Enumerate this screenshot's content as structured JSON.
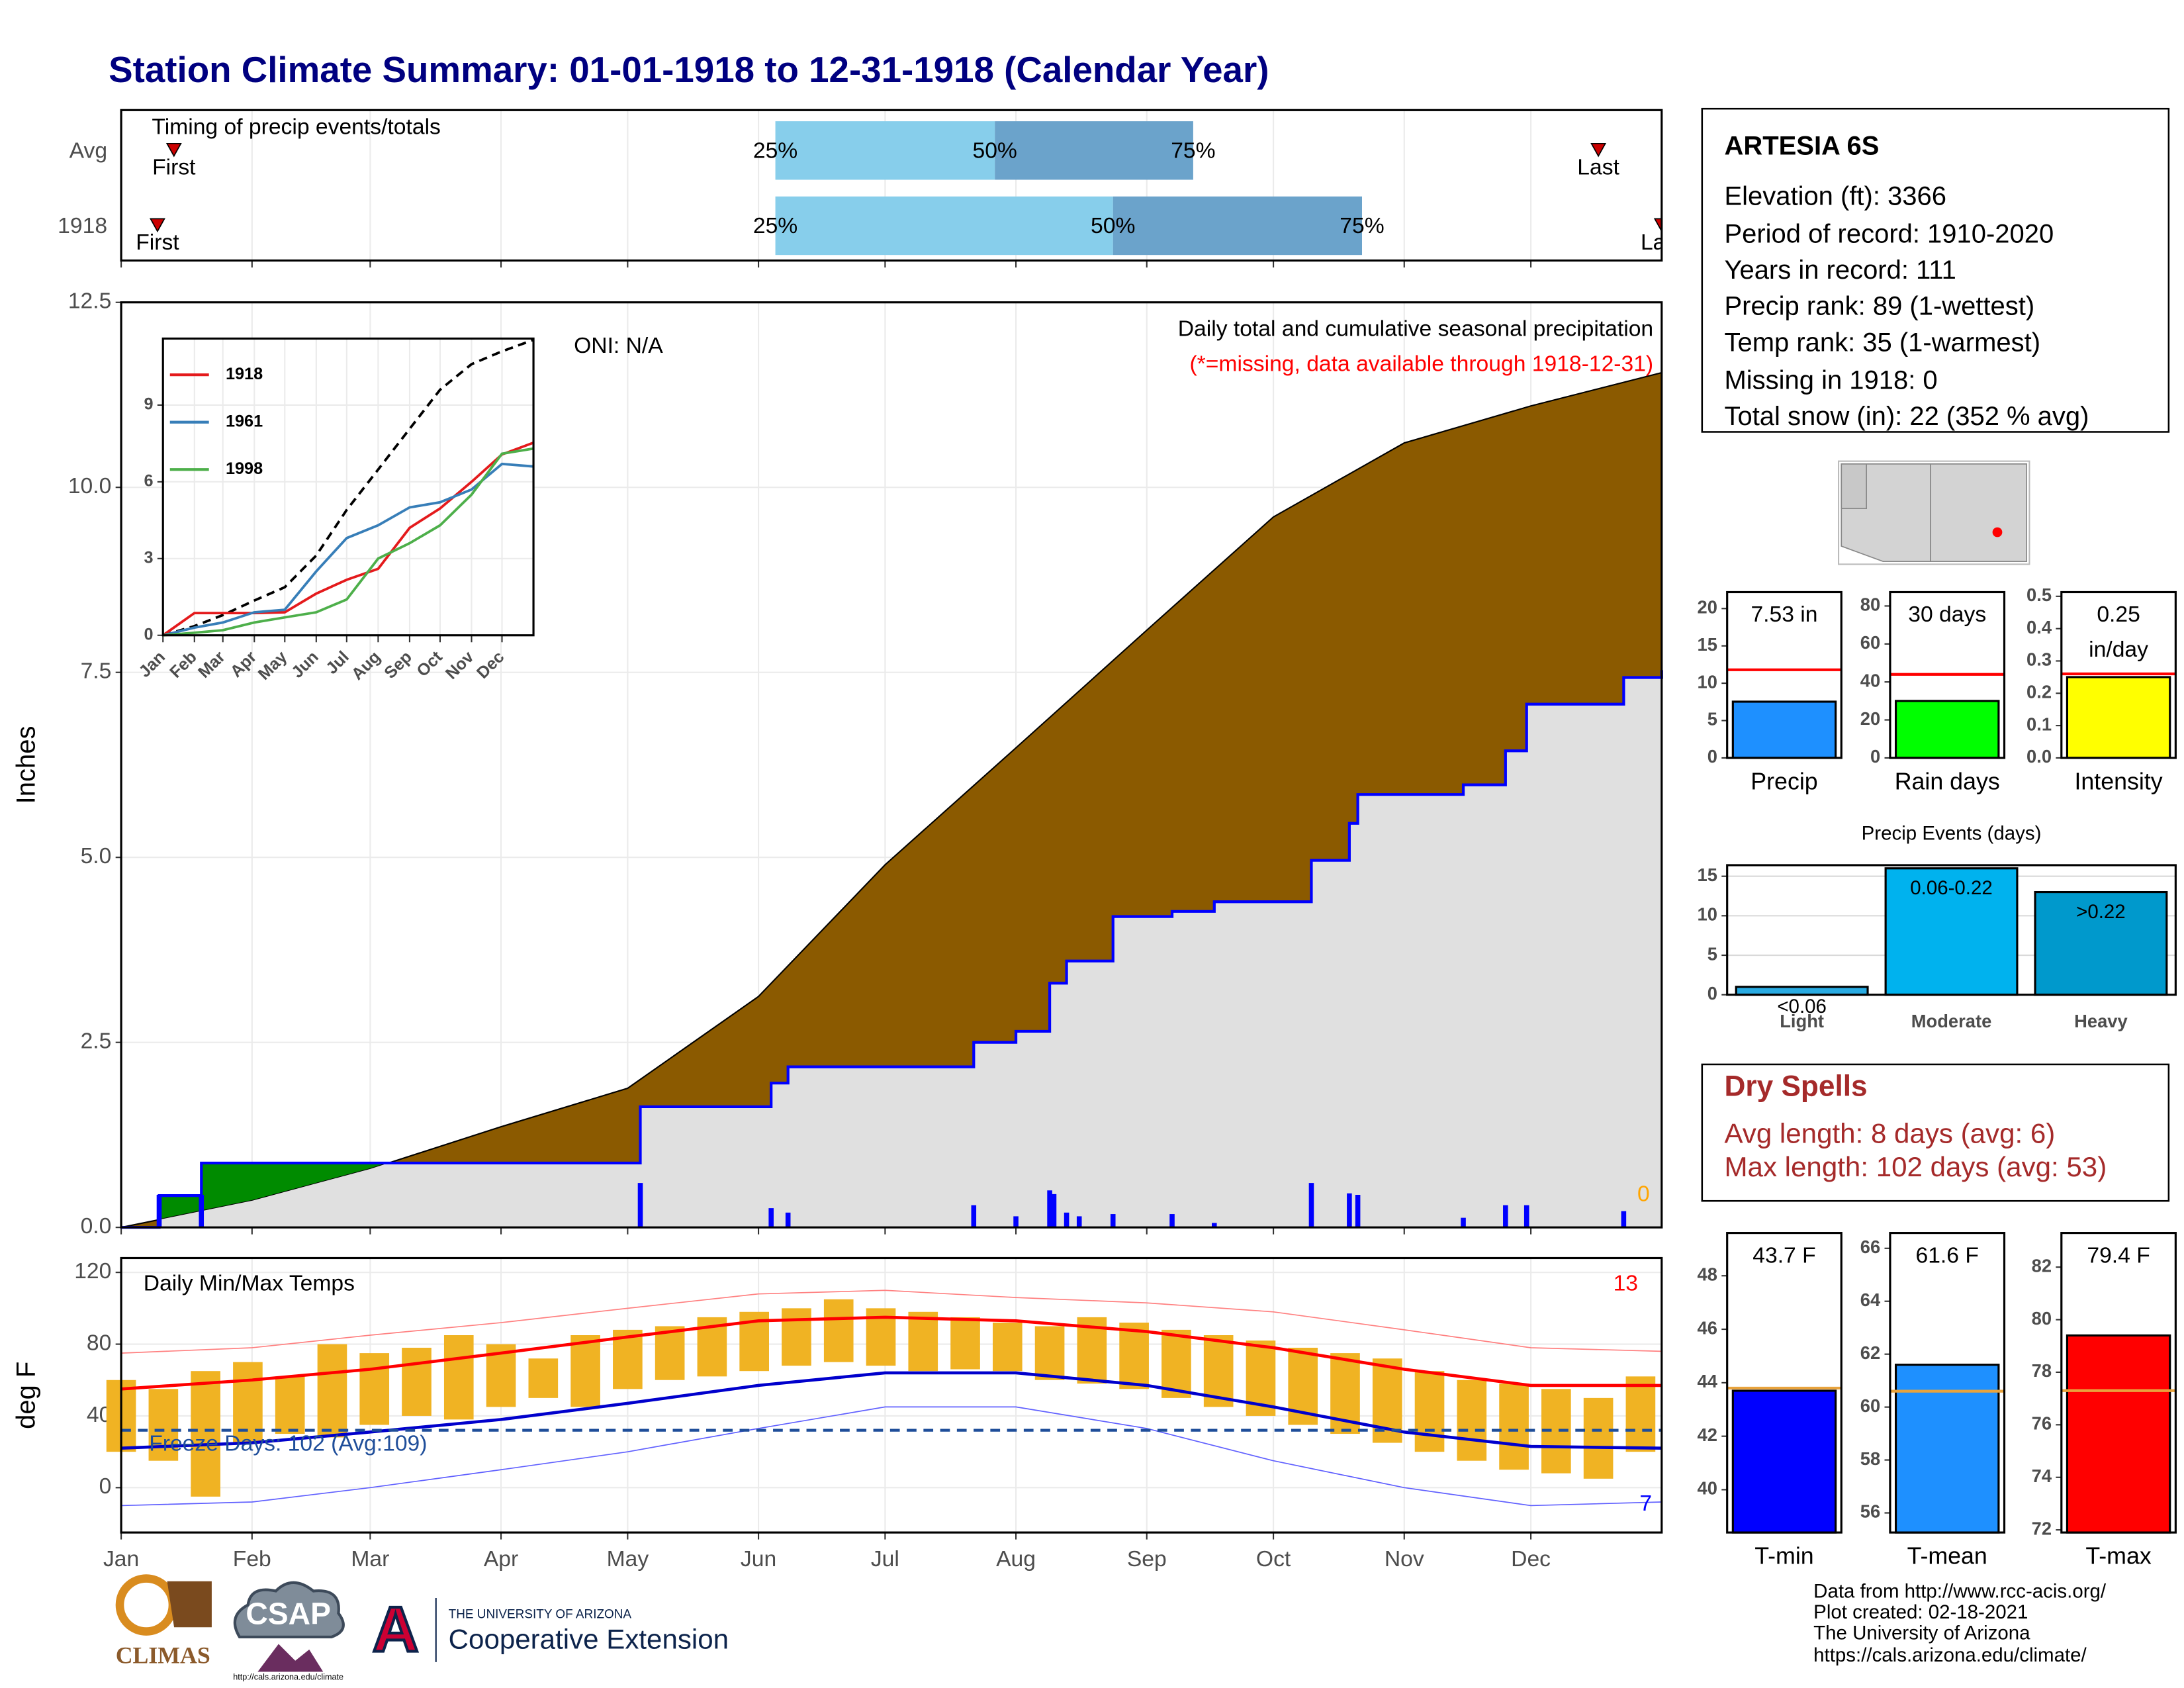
{
  "title": "Station Climate Summary: 01-01-1918 to 12-31-1918 (Calendar Year)",
  "chart_data": [
    {
      "type": "timing",
      "title": "Timing of precip events/totals",
      "categories": [
        "Avg",
        "1918"
      ],
      "first": [
        12.5,
        8.6
      ],
      "last": [
        350,
        365
      ],
      "quartiles": [
        [
          155,
          207,
          254
        ],
        [
          155,
          235,
          294
        ]
      ],
      "marker_labels": [
        "First",
        "Last"
      ],
      "quartile_labels": [
        "25%",
        "50%",
        "75%"
      ],
      "colors": [
        "#87ceeb",
        "#6ba3cb"
      ],
      "marker_color": "#cc0000",
      "xlim": [
        0,
        365
      ],
      "xticks": [
        0,
        31,
        59,
        90,
        120,
        151,
        181,
        212,
        243,
        273,
        304,
        334
      ],
      "grid": true
    },
    {
      "type": "area",
      "ylabel": "Inches",
      "xlim": [
        0,
        365
      ],
      "ylim": [
        0,
        12.5
      ],
      "yticks": [
        {
          "value": 0,
          "label": "0.0"
        },
        2.5,
        {
          "value": 5,
          "label": "5.0"
        },
        7.5,
        {
          "value": 10,
          "label": "10.0"
        },
        12.5
      ],
      "xticks": [
        0,
        31,
        59,
        90,
        120,
        151,
        181,
        212,
        243,
        273,
        304,
        334
      ],
      "grid": true,
      "average": {
        "color": "#8b5a00",
        "x": [
          0,
          31,
          59,
          90,
          120,
          151,
          181,
          212,
          243,
          273,
          304,
          334,
          365
        ],
        "values": [
          0,
          0.36,
          0.79,
          1.36,
          1.88,
          3.12,
          4.9,
          6.48,
          8.07,
          9.6,
          10.6,
          11.1,
          11.55
        ]
      },
      "year": {
        "color": "#0000ff",
        "above_color": "#008b00",
        "below_color": "#e0e0e0",
        "x": [
          0,
          9,
          19,
          123,
          154,
          158,
          202,
          212,
          220,
          224,
          235,
          249,
          259,
          282,
          291,
          293,
          318,
          328,
          333,
          356,
          365
        ],
        "values": [
          0,
          0.43,
          0.87,
          1.63,
          1.95,
          2.17,
          2.5,
          2.65,
          3.3,
          3.6,
          4.2,
          4.27,
          4.4,
          4.96,
          5.46,
          5.85,
          5.98,
          6.44,
          7.07,
          7.43,
          7.53
        ]
      },
      "daily": {
        "color": "#0000ff",
        "x": [
          9,
          19,
          123,
          154,
          158,
          202,
          212,
          220,
          221,
          224,
          227,
          235,
          249,
          259,
          282,
          291,
          293,
          318,
          328,
          333,
          356
        ],
        "values": [
          0.44,
          0.44,
          0.6,
          0.26,
          0.2,
          0.3,
          0.15,
          0.5,
          0.45,
          0.2,
          0.15,
          0.18,
          0.18,
          0.06,
          0.6,
          0.46,
          0.44,
          0.13,
          0.3,
          0.3,
          0.22
        ]
      },
      "annotations": [
        "ONI: N/A",
        "Daily total and cumulative seasonal precipitation",
        "(*=missing, data available through 1918-12-31)",
        "0"
      ]
    },
    {
      "type": "line",
      "xlim": [
        0,
        365
      ],
      "ylim": [
        0,
        11.6
      ],
      "yticks": [
        0,
        3,
        6,
        9
      ],
      "grid": true,
      "xticks": [
        {
          "value": 0,
          "label": "Jan"
        },
        {
          "value": 31,
          "label": "Feb"
        },
        {
          "value": 59,
          "label": "Mar"
        },
        {
          "value": 90,
          "label": "Apr"
        },
        {
          "value": 120,
          "label": "May"
        },
        {
          "value": 151,
          "label": "Jun"
        },
        {
          "value": 181,
          "label": "Jul"
        },
        {
          "value": 212,
          "label": "Aug"
        },
        {
          "value": 243,
          "label": "Sep"
        },
        {
          "value": 273,
          "label": "Oct"
        },
        {
          "value": 304,
          "label": "Nov"
        },
        {
          "value": 334,
          "label": "Dec"
        }
      ],
      "series": [
        {
          "color": "#000000",
          "dash": true,
          "x": [
            0,
            31,
            59,
            90,
            120,
            151,
            181,
            212,
            243,
            273,
            304,
            334,
            365
          ],
          "values": [
            0,
            0.36,
            0.79,
            1.36,
            1.88,
            3.12,
            4.9,
            6.48,
            8.07,
            9.6,
            10.6,
            11.1,
            11.55
          ]
        },
        {
          "name": "1918",
          "color": "#e41a1c",
          "x": [
            0,
            31,
            59,
            90,
            120,
            151,
            181,
            212,
            243,
            273,
            304,
            334,
            365
          ],
          "values": [
            0,
            0.87,
            0.87,
            0.87,
            0.9,
            1.63,
            2.17,
            2.6,
            4.2,
            4.96,
            6.0,
            7.07,
            7.53
          ]
        },
        {
          "name": "1961",
          "color": "#377eb8",
          "x": [
            0,
            31,
            59,
            90,
            120,
            151,
            181,
            212,
            243,
            273,
            304,
            334,
            365
          ],
          "values": [
            0,
            0.3,
            0.5,
            0.9,
            1.0,
            2.5,
            3.8,
            4.3,
            5.0,
            5.2,
            5.7,
            6.7,
            6.6
          ]
        },
        {
          "name": "1998",
          "color": "#4daf4a",
          "x": [
            0,
            31,
            59,
            90,
            120,
            151,
            181,
            212,
            243,
            273,
            304,
            334,
            365
          ],
          "values": [
            0,
            0.1,
            0.2,
            0.5,
            0.7,
            0.9,
            1.4,
            3.0,
            3.6,
            4.3,
            5.5,
            7.1,
            7.3
          ]
        }
      ]
    },
    {
      "type": "temperature",
      "title": "Daily Min/Max Temps",
      "ylabel": "deg F",
      "xlim": [
        0,
        365
      ],
      "ylim": [
        -25,
        128
      ],
      "yticks": [
        0,
        40,
        80,
        120
      ],
      "grid": true,
      "xticks": [
        {
          "value": 0,
          "label": "Jan"
        },
        {
          "value": 31,
          "label": "Feb"
        },
        {
          "value": 59,
          "label": "Mar"
        },
        {
          "value": 90,
          "label": "Apr"
        },
        {
          "value": 120,
          "label": "May"
        },
        {
          "value": 151,
          "label": "Jun"
        },
        {
          "value": 181,
          "label": "Jul"
        },
        {
          "value": 212,
          "label": "Aug"
        },
        {
          "value": 243,
          "label": "Sep"
        },
        {
          "value": 273,
          "label": "Oct"
        },
        {
          "value": 304,
          "label": "Nov"
        },
        {
          "value": 334,
          "label": "Dec"
        }
      ],
      "daily": {
        "color": "#f0b323",
        "x": [
          0,
          10,
          20,
          30,
          40,
          50,
          60,
          70,
          80,
          90,
          100,
          110,
          120,
          130,
          140,
          150,
          160,
          170,
          180,
          190,
          200,
          210,
          220,
          230,
          240,
          250,
          260,
          270,
          280,
          290,
          300,
          310,
          320,
          330,
          340,
          350,
          360
        ],
        "max": [
          60,
          55,
          65,
          70,
          62,
          80,
          75,
          78,
          85,
          80,
          72,
          85,
          88,
          90,
          95,
          98,
          100,
          105,
          100,
          98,
          95,
          92,
          90,
          95,
          92,
          88,
          85,
          82,
          78,
          75,
          72,
          65,
          60,
          58,
          55,
          50,
          62
        ],
        "min": [
          20,
          15,
          -5,
          25,
          30,
          28,
          35,
          40,
          38,
          45,
          50,
          45,
          55,
          60,
          62,
          65,
          68,
          70,
          68,
          65,
          66,
          65,
          60,
          58,
          55,
          50,
          45,
          40,
          35,
          30,
          25,
          20,
          15,
          10,
          8,
          5,
          20
        ]
      },
      "series": [
        {
          "color": "#ff8080",
          "width": 0.8,
          "x": [
            0,
            31,
            59,
            90,
            120,
            151,
            181,
            212,
            243,
            273,
            304,
            334,
            365
          ],
          "values": [
            75,
            78,
            85,
            92,
            100,
            108,
            110,
            106,
            103,
            98,
            88,
            78,
            76
          ]
        },
        {
          "color": "#6060ff",
          "width": 0.8,
          "x": [
            0,
            31,
            59,
            90,
            120,
            151,
            181,
            212,
            243,
            273,
            304,
            334,
            365
          ],
          "values": [
            -10,
            -8,
            0,
            10,
            20,
            33,
            45,
            45,
            33,
            15,
            0,
            -10,
            -8
          ]
        },
        {
          "color": "#ff0000",
          "width": 2.2,
          "x": [
            0,
            31,
            59,
            90,
            120,
            151,
            181,
            212,
            243,
            273,
            304,
            334,
            365
          ],
          "values": [
            55,
            60,
            66,
            75,
            84,
            93,
            95,
            93,
            87,
            78,
            66,
            57,
            57
          ]
        },
        {
          "color": "#0000cc",
          "width": 2.2,
          "x": [
            0,
            31,
            59,
            90,
            120,
            151,
            181,
            212,
            243,
            273,
            304,
            334,
            365
          ],
          "values": [
            22,
            25,
            31,
            38,
            47,
            57,
            64,
            64,
            57,
            45,
            31,
            23,
            22
          ]
        }
      ],
      "freeze": 32,
      "freeze_color": "#1f4e9a",
      "annotations": [
        "Freeze Days: 102 (Avg:109)",
        "13",
        "7"
      ]
    },
    {
      "type": "bar",
      "categories": [
        "Precip"
      ],
      "values": [
        7.53
      ],
      "value_labels": [
        "7.53 in"
      ],
      "color": "#1e90ff",
      "average": 11.8,
      "average_color": "#ff0000",
      "ylim": [
        0,
        22.2
      ],
      "yticks": [
        0,
        5,
        10,
        15,
        20
      ]
    },
    {
      "type": "bar",
      "categories": [
        "Rain days"
      ],
      "values": [
        30
      ],
      "value_labels": [
        "30 days"
      ],
      "color": "#00ff00",
      "average": 44,
      "average_color": "#ff0000",
      "ylim": [
        0,
        87.3
      ],
      "yticks": [
        0,
        20,
        40,
        60,
        80
      ]
    },
    {
      "type": "bar",
      "categories": [
        "Intensity"
      ],
      "values": [
        0.25
      ],
      "value_labels": [
        "0.25"
      ],
      "unit_label": "in/day",
      "color": "#ffff00",
      "average": 0.26,
      "average_color": "#ff0000",
      "ylim": [
        0,
        0.513
      ],
      "yticks": [
        {
          "value": 0,
          "label": "0.0"
        },
        0.1,
        0.2,
        0.3,
        0.4,
        0.5
      ]
    },
    {
      "type": "bar",
      "title": "Precip Events (days)",
      "categories": [
        "Light",
        "Moderate",
        "Heavy"
      ],
      "values": [
        1,
        16,
        13
      ],
      "value_labels": [
        "<0.06",
        "0.06-0.22",
        ">0.22"
      ],
      "colors": [
        "#29abe2",
        "#00b2ee",
        "#0099cc"
      ],
      "ylim": [
        0,
        16.4
      ],
      "yticks": [
        0,
        5,
        10,
        15
      ],
      "grid": true
    },
    {
      "type": "bar",
      "categories": [
        "T-min"
      ],
      "values": [
        43.7
      ],
      "value_labels": [
        "43.7 F"
      ],
      "color": "#0000ff",
      "average": 43.8,
      "average_color": "#e8a33d",
      "ylim": [
        38.4,
        49.6
      ],
      "yticks": [
        40,
        42,
        44,
        46,
        48
      ]
    },
    {
      "type": "bar",
      "categories": [
        "T-mean"
      ],
      "values": [
        61.6
      ],
      "value_labels": [
        "61.6 F"
      ],
      "color": "#1e90ff",
      "average": 60.6,
      "average_color": "#e8a33d",
      "ylim": [
        55.26,
        66.58
      ],
      "yticks": [
        56,
        58,
        60,
        62,
        64,
        66
      ]
    },
    {
      "type": "bar",
      "categories": [
        "T-max"
      ],
      "values": [
        79.4
      ],
      "value_labels": [
        "79.4 F"
      ],
      "color": "#ff0000",
      "average": 77.3,
      "average_color": "#e8a33d",
      "ylim": [
        71.9,
        83.3
      ],
      "yticks": [
        72,
        74,
        76,
        78,
        80,
        82
      ]
    }
  ],
  "info": {
    "station": "ARTESIA 6S",
    "lines": [
      "Elevation (ft): 3366",
      "Period of record: 1910-2020",
      "Years in record: 111",
      "Precip rank: 89 (1-wettest)",
      "Temp rank: 35 (1-warmest)",
      "Missing in 1918: 0",
      "Total snow (in): 22 (352 % avg)"
    ]
  },
  "dry_spells": {
    "title": "Dry Spells",
    "lines": [
      "Avg length: 8 days (avg: 6)",
      "Max length: 102 days (avg: 53)"
    ]
  },
  "footer": {
    "lines": [
      "Data from http://www.rcc-acis.org/",
      "Plot created: 02-18-2021",
      "The University of Arizona",
      "https://cals.arizona.edu/climate/"
    ]
  },
  "logos": {
    "climas": "CLIMAS",
    "csap": "CSAP",
    "csap_url": "http://cals.arizona.edu/climate",
    "university": "THE UNIVERSITY OF ARIZONA",
    "extension": "Cooperative Extension"
  }
}
